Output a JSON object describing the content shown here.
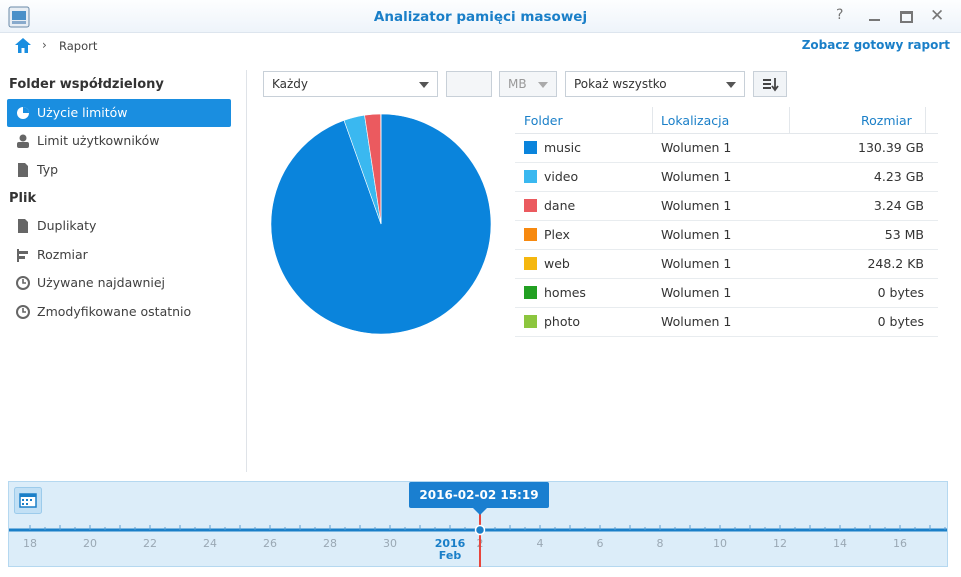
{
  "window": {
    "title": "Analizator pamięci masowej"
  },
  "breadcrumb": {
    "current": "Raport",
    "link": "Zobacz gotowy raport"
  },
  "sidebar": {
    "section1": "Folder współdzielony",
    "items1": [
      "Użycie limitów",
      "Limit użytkowników",
      "Typ"
    ],
    "section2": "Plik",
    "items2": [
      "Duplikaty",
      "Rozmiar",
      "Używane najdawniej",
      "Zmodyfikowane ostatnio"
    ]
  },
  "filters": {
    "scope": "Każdy",
    "unit": "MB",
    "show": "Pokaż wszystko"
  },
  "table": {
    "headers": [
      "Folder",
      "Lokalizacja",
      "Rozmiar"
    ],
    "location": "Wolumen 1"
  },
  "chart_data": {
    "type": "pie",
    "categories": [
      "music",
      "video",
      "dane",
      "Plex",
      "web",
      "homes",
      "photo"
    ],
    "values": [
      130.39,
      4.23,
      3.24,
      0.053,
      0.0002482,
      0,
      0
    ],
    "value_labels": [
      "130.39 GB",
      "4.23 GB",
      "3.24 GB",
      "53 MB",
      "248.2 KB",
      "0 bytes",
      "0 bytes"
    ],
    "colors": [
      "#0a84dc",
      "#3ab8f0",
      "#eb5a5f",
      "#f7890f",
      "#f5b70f",
      "#22a022",
      "#8cc63e"
    ]
  },
  "timeline": {
    "selected": "2016-02-02 15:19",
    "year": "2016",
    "month": "Feb",
    "labels": [
      "18",
      "20",
      "22",
      "24",
      "26",
      "28",
      "30",
      "2",
      "4",
      "6",
      "8",
      "10",
      "12",
      "14",
      "16"
    ]
  }
}
